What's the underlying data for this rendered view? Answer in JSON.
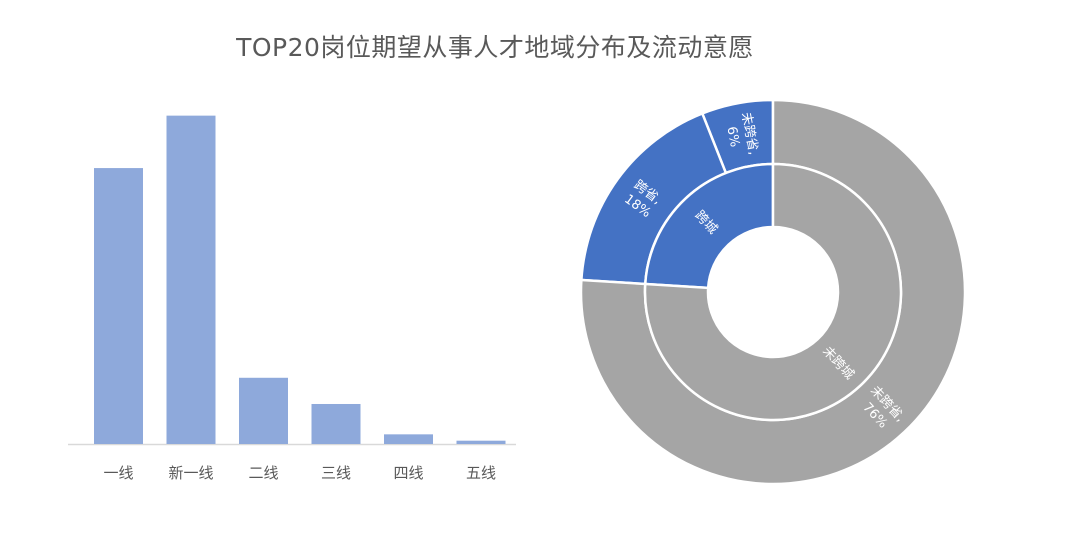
{
  "title": "TOP20岗位期望从事人才地域分布及流动意愿",
  "chart_data": [
    {
      "type": "bar",
      "categories": [
        "一线",
        "新一线",
        "二线",
        "三线",
        "四线",
        "五线"
      ],
      "values": [
        100,
        119,
        24,
        14.5,
        3.5,
        1.2
      ],
      "color": "#8EA9DB"
    },
    {
      "type": "pie",
      "subtype": "donut",
      "rings": [
        {
          "name": "inner",
          "segments": [
            {
              "label": "跨城",
              "value": 24,
              "color": "#4472C4"
            },
            {
              "label": "未跨城",
              "value": 76,
              "color": "#A5A5A5"
            }
          ]
        },
        {
          "name": "outer",
          "segments": [
            {
              "label": "未跨省",
              "pct_label": "6%",
              "value": 6,
              "color": "#4472C4"
            },
            {
              "label": "跨省",
              "pct_label": "18%",
              "value": 18,
              "color": "#4472C4"
            },
            {
              "label": "未跨省",
              "pct_label": "76%",
              "value": 76,
              "color": "#A5A5A5"
            }
          ]
        }
      ]
    }
  ]
}
